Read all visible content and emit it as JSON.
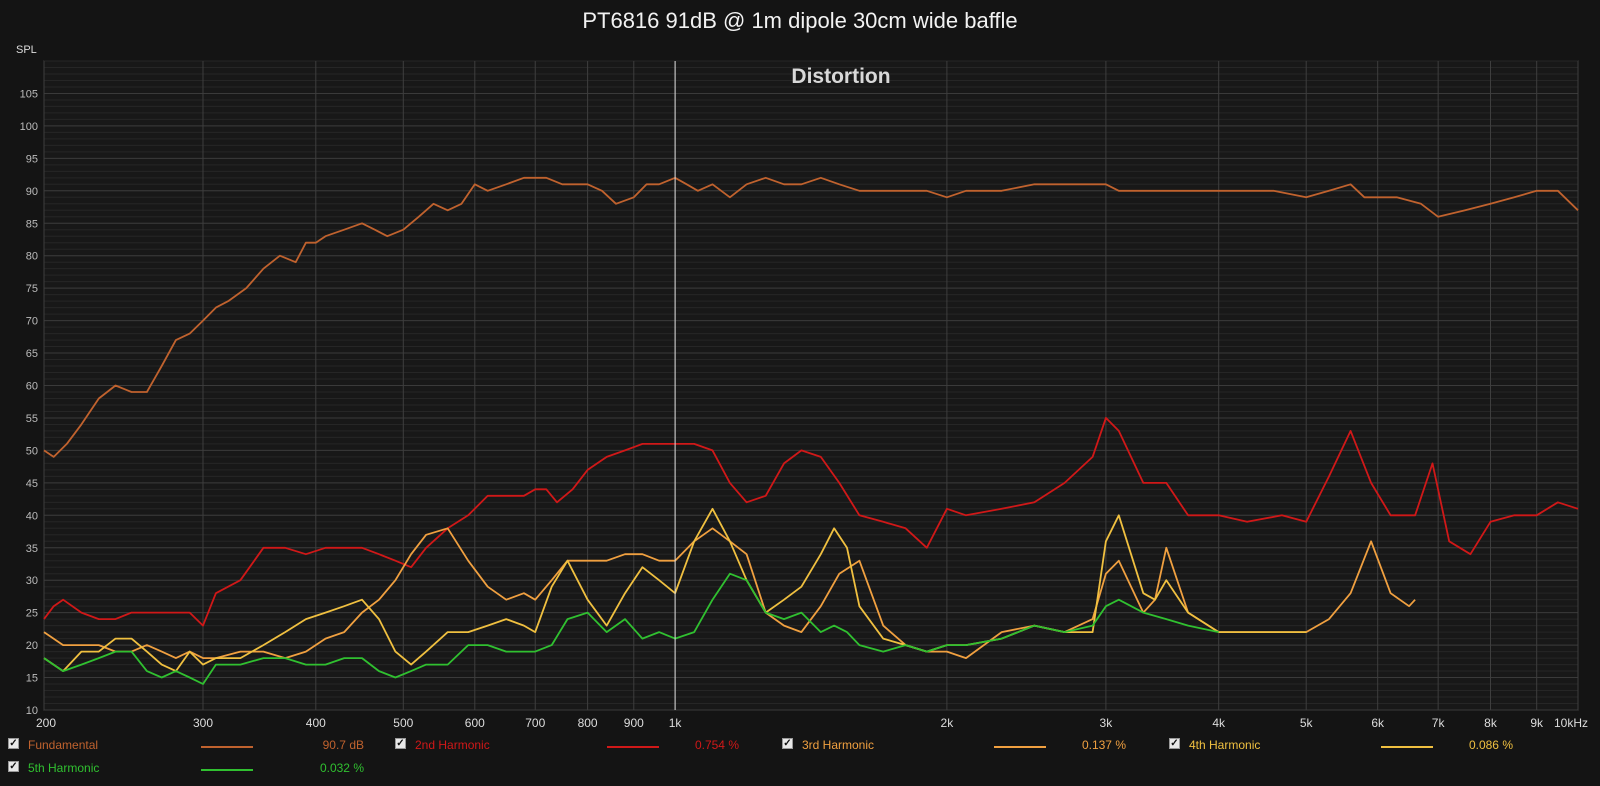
{
  "chart_title": "PT6816 91dB @ 1m dipole 30cm wide baffle",
  "chart_data": {
    "type": "line",
    "title": "PT6816 91dB @ 1m dipole 30cm wide baffle",
    "subtitle": "Distortion",
    "ylabel": "SPL",
    "xscale": "log",
    "xlim": [
      200,
      10000
    ],
    "ylim": [
      10,
      110
    ],
    "y_ticks": [
      10,
      15,
      20,
      25,
      30,
      35,
      40,
      45,
      50,
      55,
      60,
      65,
      70,
      75,
      80,
      85,
      90,
      95,
      100,
      105
    ],
    "x_ticks": [
      200,
      300,
      400,
      500,
      600,
      700,
      800,
      900,
      1000,
      2000,
      3000,
      4000,
      5000,
      6000,
      7000,
      8000,
      9000,
      10000
    ],
    "x_tick_labels": [
      "200",
      "300",
      "400",
      "500",
      "600",
      "700",
      "800",
      "900",
      "1k",
      "2k",
      "3k",
      "4k",
      "5k",
      "6k",
      "7k",
      "8k",
      "9k",
      "10kHz"
    ],
    "grid": true,
    "cursor_x": 1000,
    "legend_position": "bottom",
    "series": [
      {
        "name": "Fundamental",
        "value_label": "90.7 dB",
        "color": "#c0622e",
        "x": [
          200,
          205,
          212,
          220,
          230,
          240,
          250,
          260,
          270,
          280,
          290,
          300,
          310,
          320,
          335,
          350,
          365,
          380,
          390,
          400,
          410,
          430,
          450,
          465,
          480,
          500,
          520,
          540,
          560,
          580,
          600,
          620,
          650,
          680,
          700,
          720,
          750,
          780,
          800,
          830,
          860,
          900,
          930,
          960,
          1000,
          1030,
          1060,
          1100,
          1150,
          1200,
          1260,
          1320,
          1380,
          1450,
          1520,
          1600,
          1700,
          1800,
          1900,
          2000,
          2100,
          2300,
          2500,
          2700,
          2900,
          3000,
          3100,
          3300,
          3500,
          3800,
          4000,
          4300,
          4600,
          5000,
          5300,
          5600,
          5800,
          6000,
          6300,
          6700,
          7000,
          7500,
          8000,
          8500,
          9000,
          9500,
          10000
        ],
        "y": [
          50,
          49,
          51,
          54,
          58,
          60,
          59,
          59,
          63,
          67,
          68,
          70,
          72,
          73,
          75,
          78,
          80,
          79,
          82,
          82,
          83,
          84,
          85,
          84,
          83,
          84,
          86,
          88,
          87,
          88,
          91,
          90,
          91,
          92,
          92,
          92,
          91,
          91,
          91,
          90,
          88,
          89,
          91,
          91,
          92,
          91,
          90,
          91,
          89,
          91,
          92,
          91,
          91,
          92,
          91,
          90,
          90,
          90,
          90,
          89,
          90,
          90,
          91,
          91,
          91,
          91,
          90,
          90,
          90,
          90,
          90,
          90,
          90,
          89,
          90,
          91,
          89,
          89,
          89,
          88,
          86,
          87,
          88,
          89,
          90,
          90,
          87
        ]
      },
      {
        "name": "2nd Harmonic",
        "value_label": "0.754 %",
        "color": "#d01818",
        "x": [
          200,
          205,
          210,
          220,
          230,
          240,
          250,
          260,
          270,
          280,
          290,
          300,
          310,
          330,
          350,
          370,
          390,
          410,
          430,
          450,
          470,
          490,
          510,
          530,
          560,
          590,
          620,
          650,
          680,
          700,
          720,
          740,
          770,
          800,
          840,
          880,
          920,
          960,
          1000,
          1050,
          1100,
          1150,
          1200,
          1260,
          1320,
          1380,
          1450,
          1520,
          1600,
          1700,
          1800,
          1900,
          2000,
          2100,
          2300,
          2500,
          2700,
          2900,
          3000,
          3100,
          3300,
          3500,
          3700,
          4000,
          4300,
          4700,
          5000,
          5300,
          5600,
          5900,
          6200,
          6600,
          6900,
          7200,
          7600,
          8000,
          8500,
          9000,
          9500,
          10000
        ],
        "y": [
          24,
          26,
          27,
          25,
          24,
          24,
          25,
          25,
          25,
          25,
          25,
          23,
          28,
          30,
          35,
          35,
          34,
          35,
          35,
          35,
          34,
          33,
          32,
          35,
          38,
          40,
          43,
          43,
          43,
          44,
          44,
          42,
          44,
          47,
          49,
          50,
          51,
          51,
          51,
          51,
          50,
          45,
          42,
          43,
          48,
          50,
          49,
          45,
          40,
          39,
          38,
          35,
          41,
          40,
          41,
          42,
          45,
          49,
          55,
          53,
          45,
          45,
          40,
          40,
          39,
          40,
          39,
          46,
          53,
          45,
          40,
          40,
          48,
          36,
          34,
          39,
          40,
          40,
          42,
          41
        ]
      },
      {
        "name": "3rd Harmonic",
        "value_label": "0.137 %",
        "color": "#f0a040",
        "x": [
          200,
          210,
          220,
          230,
          240,
          250,
          260,
          270,
          280,
          290,
          300,
          310,
          330,
          350,
          370,
          390,
          410,
          430,
          450,
          470,
          490,
          510,
          530,
          560,
          590,
          620,
          650,
          680,
          700,
          730,
          760,
          800,
          840,
          880,
          920,
          960,
          1000,
          1050,
          1100,
          1150,
          1200,
          1260,
          1320,
          1380,
          1450,
          1520,
          1600,
          1700,
          1800,
          1900,
          2000,
          2100,
          2300,
          2500,
          2700,
          2900,
          3000,
          3100,
          3300,
          3400,
          3500,
          3700,
          4000,
          4300,
          4700,
          5000,
          5300,
          5600,
          5900,
          6200,
          6500,
          6600
        ],
        "y": [
          22,
          20,
          20,
          20,
          19,
          19,
          20,
          19,
          18,
          19,
          18,
          18,
          19,
          19,
          18,
          19,
          21,
          22,
          25,
          27,
          30,
          34,
          37,
          38,
          33,
          29,
          27,
          28,
          27,
          30,
          33,
          33,
          33,
          34,
          34,
          33,
          33,
          36,
          38,
          36,
          34,
          25,
          23,
          22,
          26,
          31,
          33,
          23,
          20,
          19,
          19,
          18,
          22,
          23,
          22,
          24,
          31,
          33,
          25,
          27,
          35,
          25,
          22,
          22,
          22,
          22,
          24,
          28,
          36,
          28,
          26,
          27
        ]
      },
      {
        "name": "4th Harmonic",
        "value_label": "0.086 %",
        "color": "#f0c040",
        "x": [
          200,
          210,
          220,
          230,
          240,
          250,
          260,
          270,
          280,
          290,
          300,
          310,
          330,
          350,
          370,
          390,
          410,
          430,
          450,
          470,
          490,
          510,
          530,
          560,
          590,
          620,
          650,
          680,
          700,
          730,
          760,
          800,
          840,
          880,
          920,
          960,
          1000,
          1050,
          1100,
          1150,
          1200,
          1260,
          1320,
          1380,
          1450,
          1500,
          1550,
          1600,
          1700,
          1800,
          1900,
          2000,
          2100,
          2300,
          2500,
          2700,
          2900,
          3000,
          3100,
          3300,
          3400,
          3500,
          3700,
          4000,
          4300,
          4700,
          5000
        ],
        "y": [
          18,
          16,
          19,
          19,
          21,
          21,
          19,
          17,
          16,
          19,
          17,
          18,
          18,
          20,
          22,
          24,
          25,
          26,
          27,
          24,
          19,
          17,
          19,
          22,
          22,
          23,
          24,
          23,
          22,
          29,
          33,
          27,
          23,
          28,
          32,
          30,
          28,
          36,
          41,
          36,
          30,
          25,
          27,
          29,
          34,
          38,
          35,
          26,
          21,
          20,
          19,
          20,
          20,
          21,
          23,
          22,
          22,
          36,
          40,
          28,
          27,
          30,
          25,
          22,
          22,
          22,
          22
        ]
      },
      {
        "name": "5th Harmonic",
        "value_label": "0.032 %",
        "color": "#30c030",
        "x": [
          200,
          210,
          220,
          230,
          240,
          250,
          260,
          270,
          280,
          290,
          300,
          310,
          330,
          350,
          370,
          390,
          410,
          430,
          450,
          470,
          490,
          510,
          530,
          560,
          590,
          620,
          650,
          680,
          700,
          730,
          760,
          800,
          840,
          880,
          920,
          960,
          1000,
          1050,
          1100,
          1150,
          1200,
          1260,
          1320,
          1380,
          1450,
          1500,
          1550,
          1600,
          1700,
          1800,
          1900,
          2000,
          2100,
          2300,
          2500,
          2700,
          2900,
          3000,
          3100,
          3300,
          3500,
          3700,
          4000
        ],
        "y": [
          18,
          16,
          17,
          18,
          19,
          19,
          16,
          15,
          16,
          15,
          14,
          17,
          17,
          18,
          18,
          17,
          17,
          18,
          18,
          16,
          15,
          16,
          17,
          17,
          20,
          20,
          19,
          19,
          19,
          20,
          24,
          25,
          22,
          24,
          21,
          22,
          21,
          22,
          27,
          31,
          30,
          25,
          24,
          25,
          22,
          23,
          22,
          20,
          19,
          20,
          19,
          20,
          20,
          21,
          23,
          22,
          23,
          26,
          27,
          25,
          24,
          23,
          22
        ]
      }
    ]
  },
  "legend": {
    "items": [
      {
        "name": "Fundamental",
        "value": "90.7 dB",
        "color": "#c0622e"
      },
      {
        "name": "2nd Harmonic",
        "value": "0.754 %",
        "color": "#d01818"
      },
      {
        "name": "3rd Harmonic",
        "value": "0.137 %",
        "color": "#f0a040"
      },
      {
        "name": "4th Harmonic",
        "value": "0.086 %",
        "color": "#f0c040"
      },
      {
        "name": "5th Harmonic",
        "value": "0.032 %",
        "color": "#30c030"
      }
    ],
    "check_glyph": "✓"
  }
}
